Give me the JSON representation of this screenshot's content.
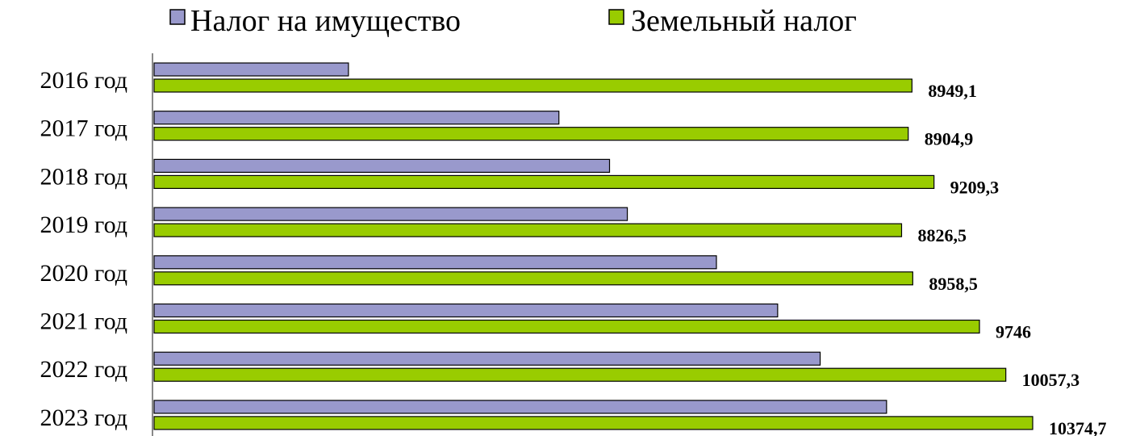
{
  "chart_data": {
    "type": "bar",
    "orientation": "horizontal",
    "categories": [
      "2016 год",
      "2017 год",
      "2018 год",
      "2019 год",
      "2020 год",
      "2021 год",
      "2022 год",
      "2023 год"
    ],
    "series": [
      {
        "name": "Налог на имущество",
        "color": "#9999cc",
        "values": [
          2295,
          4780,
          5378,
          5588,
          6640,
          7363,
          7865,
          8649
        ]
      },
      {
        "name": "Земельный налог",
        "color": "#99cc00",
        "values": [
          8949.1,
          8904.9,
          9209.3,
          8826.5,
          8958.5,
          9746,
          10057.3,
          10374.7
        ],
        "labels": [
          "8949,1",
          "8904,9",
          "9209,3",
          "8826,5",
          "8958,5",
          "9746",
          "10057,3",
          "10374,7"
        ]
      }
    ],
    "legend_position": "top",
    "grid": false
  }
}
